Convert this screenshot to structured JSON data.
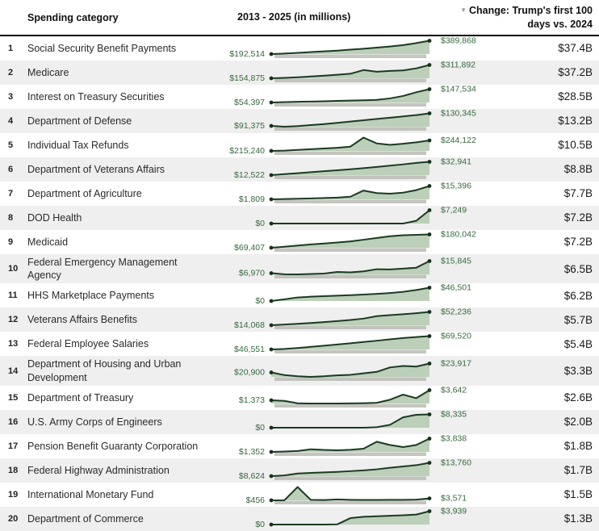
{
  "header": {
    "spending_category": "Spending category",
    "period": "2013 - 2025 (in millions)",
    "sort_icon": "▼",
    "change_line1": "Change: Trump's first 100",
    "change_line2": "days vs. 2024"
  },
  "colors": {
    "line": "#1b3a22",
    "fill": "#bccfb8",
    "shadow_bar": "#b8bbb3",
    "dot": "#16301c",
    "value_label": "#35693d",
    "row_alt_bg": "#efefef",
    "header_rule": "#000000"
  },
  "chart_data": {
    "type": "table",
    "title": "Spending categories, 2013 - 2025 (in millions), change Trump's first 100 days vs. 2024",
    "x_range": [
      2013,
      2025
    ],
    "units": "USD millions",
    "columns": [
      "Rank",
      "Spending category",
      "2013 - 2025 sparkline",
      "Change: Trump's first 100 days vs. 2024"
    ],
    "rows": [
      {
        "rank": "1",
        "category": "Social Security Benefit Payments",
        "start_label": "$192,514",
        "end_label": "$389,868",
        "change": "$37.4B",
        "series": [
          192514,
          200000,
          210000,
          222000,
          233000,
          244000,
          258000,
          272000,
          288000,
          305000,
          325000,
          355000,
          389868
        ]
      },
      {
        "rank": "2",
        "category": "Medicare",
        "start_label": "$154,875",
        "end_label": "$311,892",
        "change": "$37.2B",
        "series": [
          154875,
          160000,
          167000,
          176000,
          186000,
          196000,
          208000,
          252000,
          232000,
          242000,
          248000,
          272000,
          311892
        ]
      },
      {
        "rank": "3",
        "category": "Interest on Treasury Securities",
        "start_label": "$54,397",
        "end_label": "$147,534",
        "change": "$28.5B",
        "series": [
          54397,
          57000,
          59000,
          61000,
          63000,
          66000,
          68000,
          70000,
          73000,
          83000,
          100000,
          126000,
          147534
        ]
      },
      {
        "rank": "4",
        "category": "Department of Defense",
        "start_label": "$91,375",
        "end_label": "$130,345",
        "change": "$13.2B",
        "series": [
          91375,
          89000,
          91000,
          94000,
          97000,
          101000,
          105000,
          109000,
          113000,
          117000,
          121000,
          125000,
          130345
        ]
      },
      {
        "rank": "5",
        "category": "Individual Tax Refunds",
        "start_label": "$215,240",
        "end_label": "$244,122",
        "change": "$10.5B",
        "series": [
          215240,
          216000,
          218000,
          220000,
          222000,
          224000,
          227000,
          252000,
          236000,
          232000,
          235000,
          239000,
          244122
        ]
      },
      {
        "rank": "6",
        "category": "Department of Veterans Affairs",
        "start_label": "$12,522",
        "end_label": "$32,941",
        "change": "$8.8B",
        "series": [
          12522,
          14000,
          15500,
          17000,
          18500,
          20000,
          21500,
          23200,
          25000,
          27000,
          29000,
          31200,
          32941
        ]
      },
      {
        "rank": "7",
        "category": "Department of Agriculture",
        "start_label": "$1,809",
        "end_label": "$15,396",
        "change": "$7.7B",
        "series": [
          1809,
          2100,
          2400,
          2700,
          3100,
          3600,
          4500,
          10800,
          8200,
          7600,
          8600,
          11200,
          15396
        ]
      },
      {
        "rank": "8",
        "category": "DOD Health",
        "start_label": "$0",
        "end_label": "$7,249",
        "change": "$7.2B",
        "series": [
          0,
          0,
          0,
          0,
          0,
          0,
          0,
          0,
          0,
          0,
          0,
          1500,
          7249
        ]
      },
      {
        "rank": "9",
        "category": "Medicaid",
        "start_label": "$69,407",
        "end_label": "$180,042",
        "change": "$7.2B",
        "series": [
          69407,
          78000,
          88000,
          97000,
          105000,
          113000,
          122000,
          136000,
          151000,
          165000,
          173000,
          177000,
          180042
        ]
      },
      {
        "rank": "10",
        "category": "Federal Emergency Management Agency",
        "start_label": "$6,970",
        "end_label": "$15,845",
        "change": "$6.5B",
        "series": [
          6970,
          6200,
          6100,
          6400,
          6700,
          7900,
          7600,
          8300,
          9900,
          9700,
          10300,
          11000,
          15845
        ]
      },
      {
        "rank": "11",
        "category": "HHS Marketplace Payments",
        "start_label": "$0",
        "end_label": "$46,501",
        "change": "$6.2B",
        "series": [
          0,
          6000,
          12500,
          15000,
          17000,
          18500,
          20500,
          22500,
          25000,
          28000,
          32000,
          38500,
          46501
        ]
      },
      {
        "rank": "12",
        "category": "Veterans Affairs Benefits",
        "start_label": "$14,068",
        "end_label": "$52,236",
        "change": "$5.7B",
        "series": [
          14068,
          16000,
          18200,
          20500,
          23000,
          26000,
          29000,
          33000,
          40000,
          43000,
          45500,
          48500,
          52236
        ]
      },
      {
        "rank": "13",
        "category": "Federal Employee Salaries",
        "start_label": "$46,551",
        "end_label": "$69,520",
        "change": "$5.4B",
        "series": [
          46551,
          47500,
          49000,
          51000,
          53000,
          55000,
          57200,
          59400,
          61600,
          64000,
          66200,
          68000,
          69520
        ]
      },
      {
        "rank": "14",
        "category": "Department of Housing and Urban Development",
        "start_label": "$20,900",
        "end_label": "$23,917",
        "change": "$3.3B",
        "series": [
          20900,
          20000,
          19600,
          19400,
          19600,
          19900,
          20100,
          20600,
          21100,
          22600,
          23100,
          22900,
          23917
        ]
      },
      {
        "rank": "15",
        "category": "Department of Treasury",
        "start_label": "$1,373",
        "end_label": "$3,642",
        "change": "$2.6B",
        "series": [
          1373,
          1250,
          700,
          660,
          660,
          660,
          680,
          720,
          820,
          1500,
          2650,
          1850,
          3642
        ]
      },
      {
        "rank": "16",
        "category": "U.S. Army Corps of Engineers",
        "start_label": "$0",
        "end_label": "$8,335",
        "change": "$2.0B",
        "series": [
          0,
          0,
          0,
          0,
          0,
          0,
          0,
          0,
          300,
          1800,
          6500,
          8100,
          8335
        ]
      },
      {
        "rank": "17",
        "category": "Pension Benefit Guaranty Corporation",
        "start_label": "$1,352",
        "end_label": "$3,838",
        "change": "$1.8B",
        "series": [
          1352,
          1420,
          1520,
          1850,
          1720,
          1650,
          1750,
          1950,
          3250,
          2650,
          2250,
          2650,
          3838
        ]
      },
      {
        "rank": "18",
        "category": "Federal Highway Administration",
        "start_label": "$8,624",
        "end_label": "$13,760",
        "change": "$1.7B",
        "series": [
          8624,
          8900,
          9650,
          9850,
          10050,
          10250,
          10550,
          10850,
          11250,
          11850,
          12350,
          12850,
          13760
        ]
      },
      {
        "rank": "19",
        "category": "International Monetary Fund",
        "start_label": "$456",
        "end_label": "$3,571",
        "change": "$1.5B",
        "series": [
          456,
          700,
          22000,
          1200,
          900,
          1900,
          1300,
          1100,
          1150,
          1200,
          1300,
          1600,
          3571
        ]
      },
      {
        "rank": "20",
        "category": "Department of Commerce",
        "start_label": "$0",
        "end_label": "$3,939",
        "change": "$1.3B",
        "series": [
          0,
          0,
          0,
          0,
          0,
          50,
          1900,
          2300,
          2450,
          2600,
          2750,
          2950,
          3939
        ]
      }
    ]
  }
}
